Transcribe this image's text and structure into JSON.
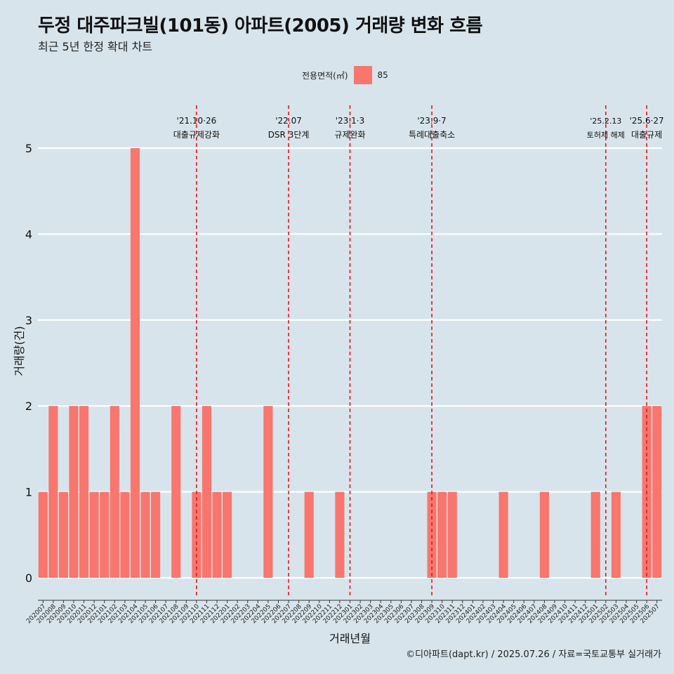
{
  "header": {
    "title": "두정 대주파크빌(101동) 아파트(2005) 거래량 변화 흐름",
    "subtitle": "최근 5년 한정 확대 차트"
  },
  "legend": {
    "title": "전용면적(㎡)",
    "item": "85",
    "color": "#f8766d"
  },
  "footer": {
    "credit": "©디아파트(dapt.kr) / 2025.07.26 / 자료=국토교통부 실거래가"
  },
  "chart_data": {
    "type": "bar",
    "xlabel": "거래년월",
    "ylabel": "거래량(건)",
    "ylim": [
      0,
      5
    ],
    "yticks": [
      0,
      1,
      2,
      3,
      4,
      5
    ],
    "grid": true,
    "legend_position": "top",
    "categories": [
      "202007",
      "202008",
      "202009",
      "202010",
      "202011",
      "202012",
      "202101",
      "202102",
      "202103",
      "202104",
      "202105",
      "202106",
      "202107",
      "202108",
      "202109",
      "202110",
      "202111",
      "202112",
      "202201",
      "202202",
      "202203",
      "202204",
      "202205",
      "202206",
      "202207",
      "202208",
      "202209",
      "202210",
      "202211",
      "202212",
      "202301",
      "202302",
      "202303",
      "202304",
      "202305",
      "202306",
      "202307",
      "202308",
      "202309",
      "202310",
      "202311",
      "202312",
      "202401",
      "202402",
      "202403",
      "202404",
      "202405",
      "202406",
      "202407",
      "202408",
      "202409",
      "202410",
      "202411",
      "202412",
      "202501",
      "202502",
      "202503",
      "202504",
      "202505",
      "202506",
      "202507"
    ],
    "series": [
      {
        "name": "85",
        "color": "#f8766d",
        "values": [
          1,
          2,
          1,
          2,
          2,
          1,
          1,
          2,
          1,
          5,
          1,
          1,
          0,
          2,
          0,
          1,
          2,
          1,
          1,
          0,
          0,
          0,
          2,
          0,
          0,
          0,
          1,
          0,
          0,
          1,
          0,
          0,
          0,
          0,
          0,
          0,
          0,
          0,
          1,
          1,
          1,
          0,
          0,
          0,
          0,
          1,
          0,
          0,
          0,
          1,
          0,
          0,
          0,
          0,
          1,
          0,
          1,
          0,
          0,
          2,
          2
        ]
      }
    ],
    "annotations": [
      {
        "category": "202110",
        "date": "'21.10·26",
        "label": "대출규제강화"
      },
      {
        "category": "202207",
        "date": "'22.07",
        "label": "DSR 3단계"
      },
      {
        "category": "202301",
        "date": "'23.1·3",
        "label": "규제완화"
      },
      {
        "category": "202309",
        "date": "'23.9·7",
        "label": "특례대출축소"
      },
      {
        "category": "202502",
        "date": "'25.2.13",
        "label": "토허제 해제"
      },
      {
        "category": "202506",
        "date": "'25.6·27",
        "label": "대출규제"
      }
    ]
  }
}
